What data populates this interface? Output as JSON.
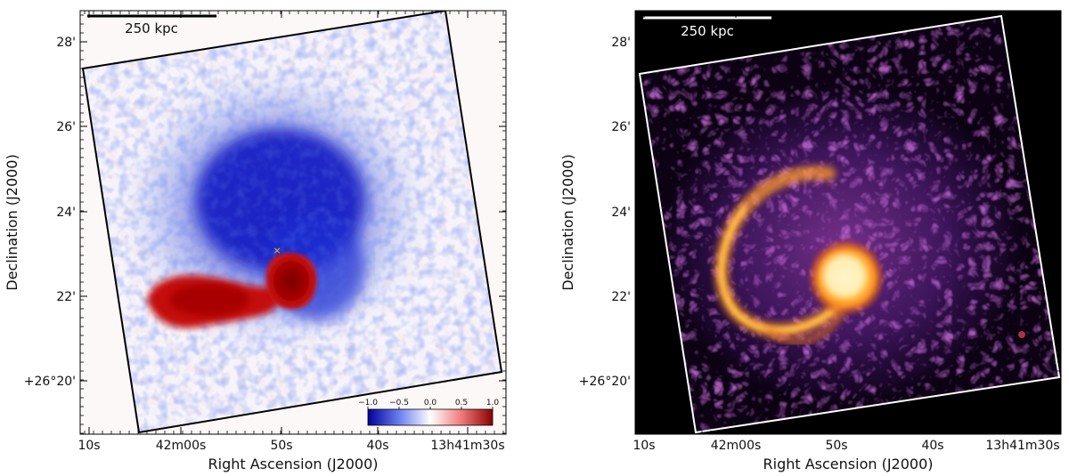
{
  "chart_data": [
    {
      "type": "heatmap",
      "panel": "left",
      "colormap": "blue-white-red (diverging)",
      "scale_bar": "250 kpc",
      "xlabel": "Right Ascension (J2000)",
      "ylabel": "Declination (J2000)",
      "x_ticks": [
        "10s",
        "42m00s",
        "50s",
        "40s",
        "13h41m30s"
      ],
      "y_ticks": [
        "28'",
        "26'",
        "24'",
        "22'",
        "+26°20'"
      ],
      "colorbar": {
        "ticks": [
          "−1.0",
          "−0.5",
          "0.0",
          "0.5",
          "1.0"
        ],
        "range": [
          -1.0,
          1.0
        ]
      },
      "marker": "×",
      "features": [
        {
          "name": "central deficit",
          "value": -1.0
        },
        {
          "name": "southern excess tail",
          "value": 0.8
        },
        {
          "name": "compact excess core",
          "value": 1.0
        }
      ],
      "colors": {
        "negative": "#0000c8",
        "zero": "#ffffff",
        "positive": "#b40000",
        "frame": "#000000",
        "marker": "#f0d000"
      }
    },
    {
      "type": "heatmap",
      "panel": "right",
      "colormap": "inferno-like (black-purple-orange-yellow)",
      "scale_bar": "250 kpc",
      "xlabel": "Right Ascension (J2000)",
      "ylabel": "Declination (J2000)",
      "x_ticks": [
        "10s",
        "42m00s",
        "50s",
        "40s",
        "13h41m30s"
      ],
      "y_ticks": [
        "28'",
        "26'",
        "24'",
        "22'",
        "+26°20'"
      ],
      "features": [
        {
          "name": "bright compact core"
        },
        {
          "name": "spiral arc"
        },
        {
          "name": "diffuse halo"
        }
      ],
      "colors": {
        "background": "#000000",
        "frame": "#ffffff",
        "core": "#fff2b0",
        "arc": "#ffb030",
        "halo": "#6a2a8e"
      }
    }
  ]
}
